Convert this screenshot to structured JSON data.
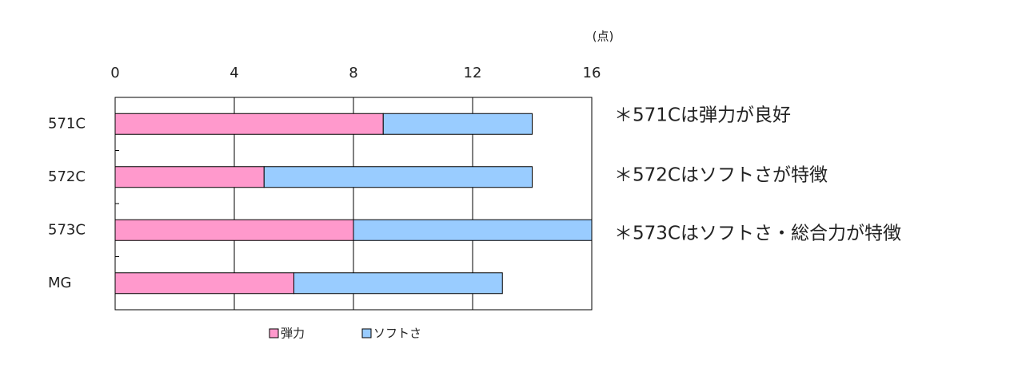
{
  "chart_data": {
    "type": "bar",
    "orientation": "horizontal",
    "stacked": true,
    "unit_label": "(点)",
    "categories": [
      "571C",
      "572C",
      "573C",
      "MG"
    ],
    "series": [
      {
        "name": "弾力",
        "color": "#ff99cc",
        "values": [
          9,
          5,
          8,
          6
        ]
      },
      {
        "name": "ソフトさ",
        "color": "#99ccff",
        "values": [
          5,
          9,
          8,
          7
        ]
      }
    ],
    "xlim": [
      0,
      16
    ],
    "xticks": [
      0,
      4,
      8,
      12,
      16
    ],
    "grid": true,
    "annotations": [
      "＊571Cは弾力が良好",
      "＊572Cはソフトさが特徴",
      "＊573Cはソフトさ・総合力が特徴"
    ]
  }
}
